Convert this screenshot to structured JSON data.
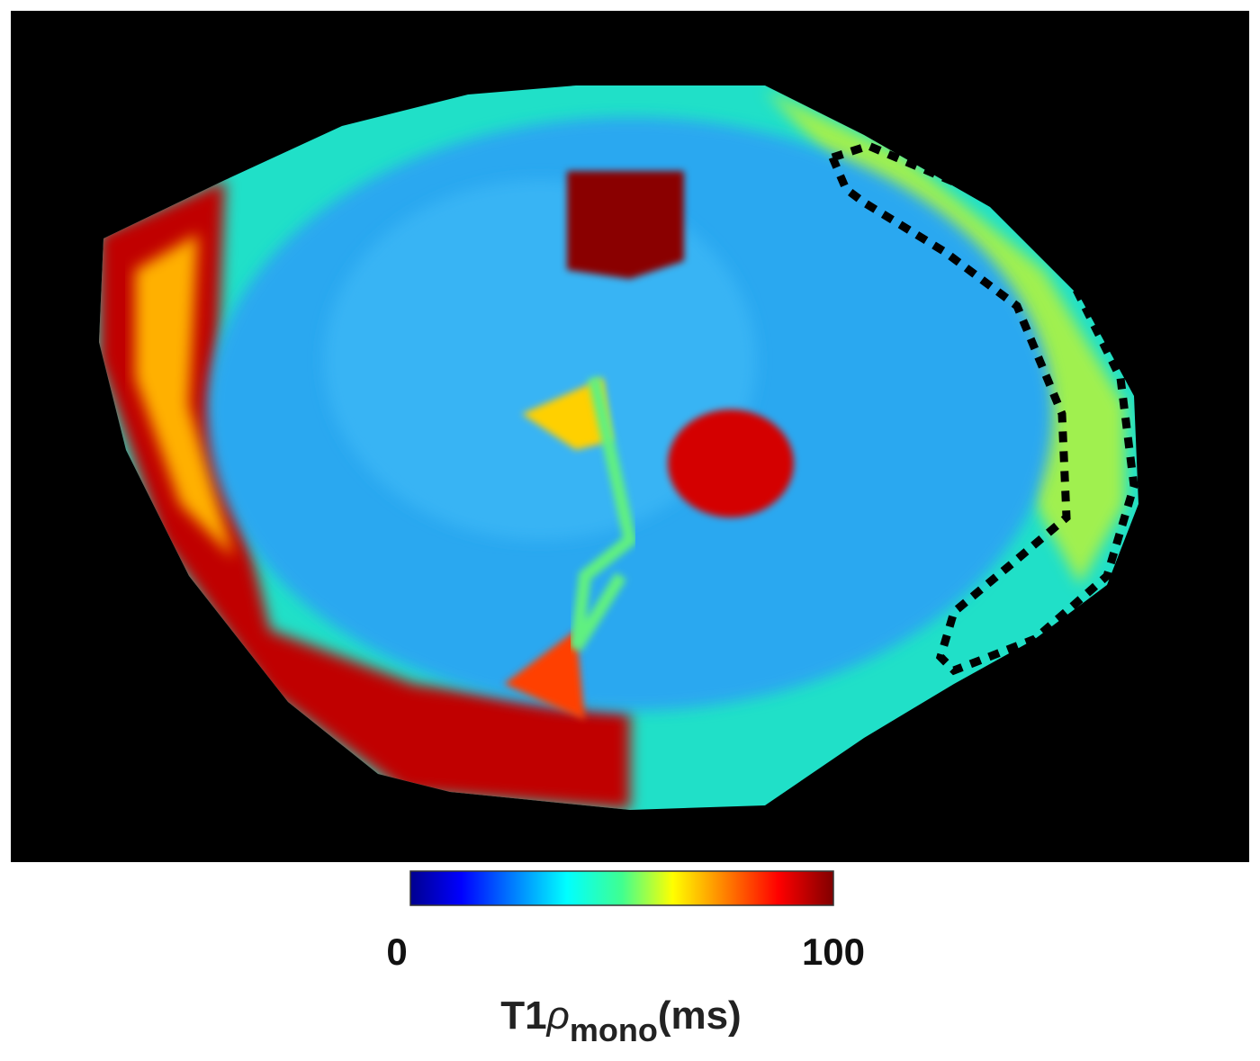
{
  "colorbar": {
    "range": [
      0,
      100
    ],
    "ticks": [
      0,
      100
    ],
    "label": {
      "main": "T1",
      "symbol": "ρ",
      "subscript": "mono",
      "unit": "(ms)"
    }
  }
}
